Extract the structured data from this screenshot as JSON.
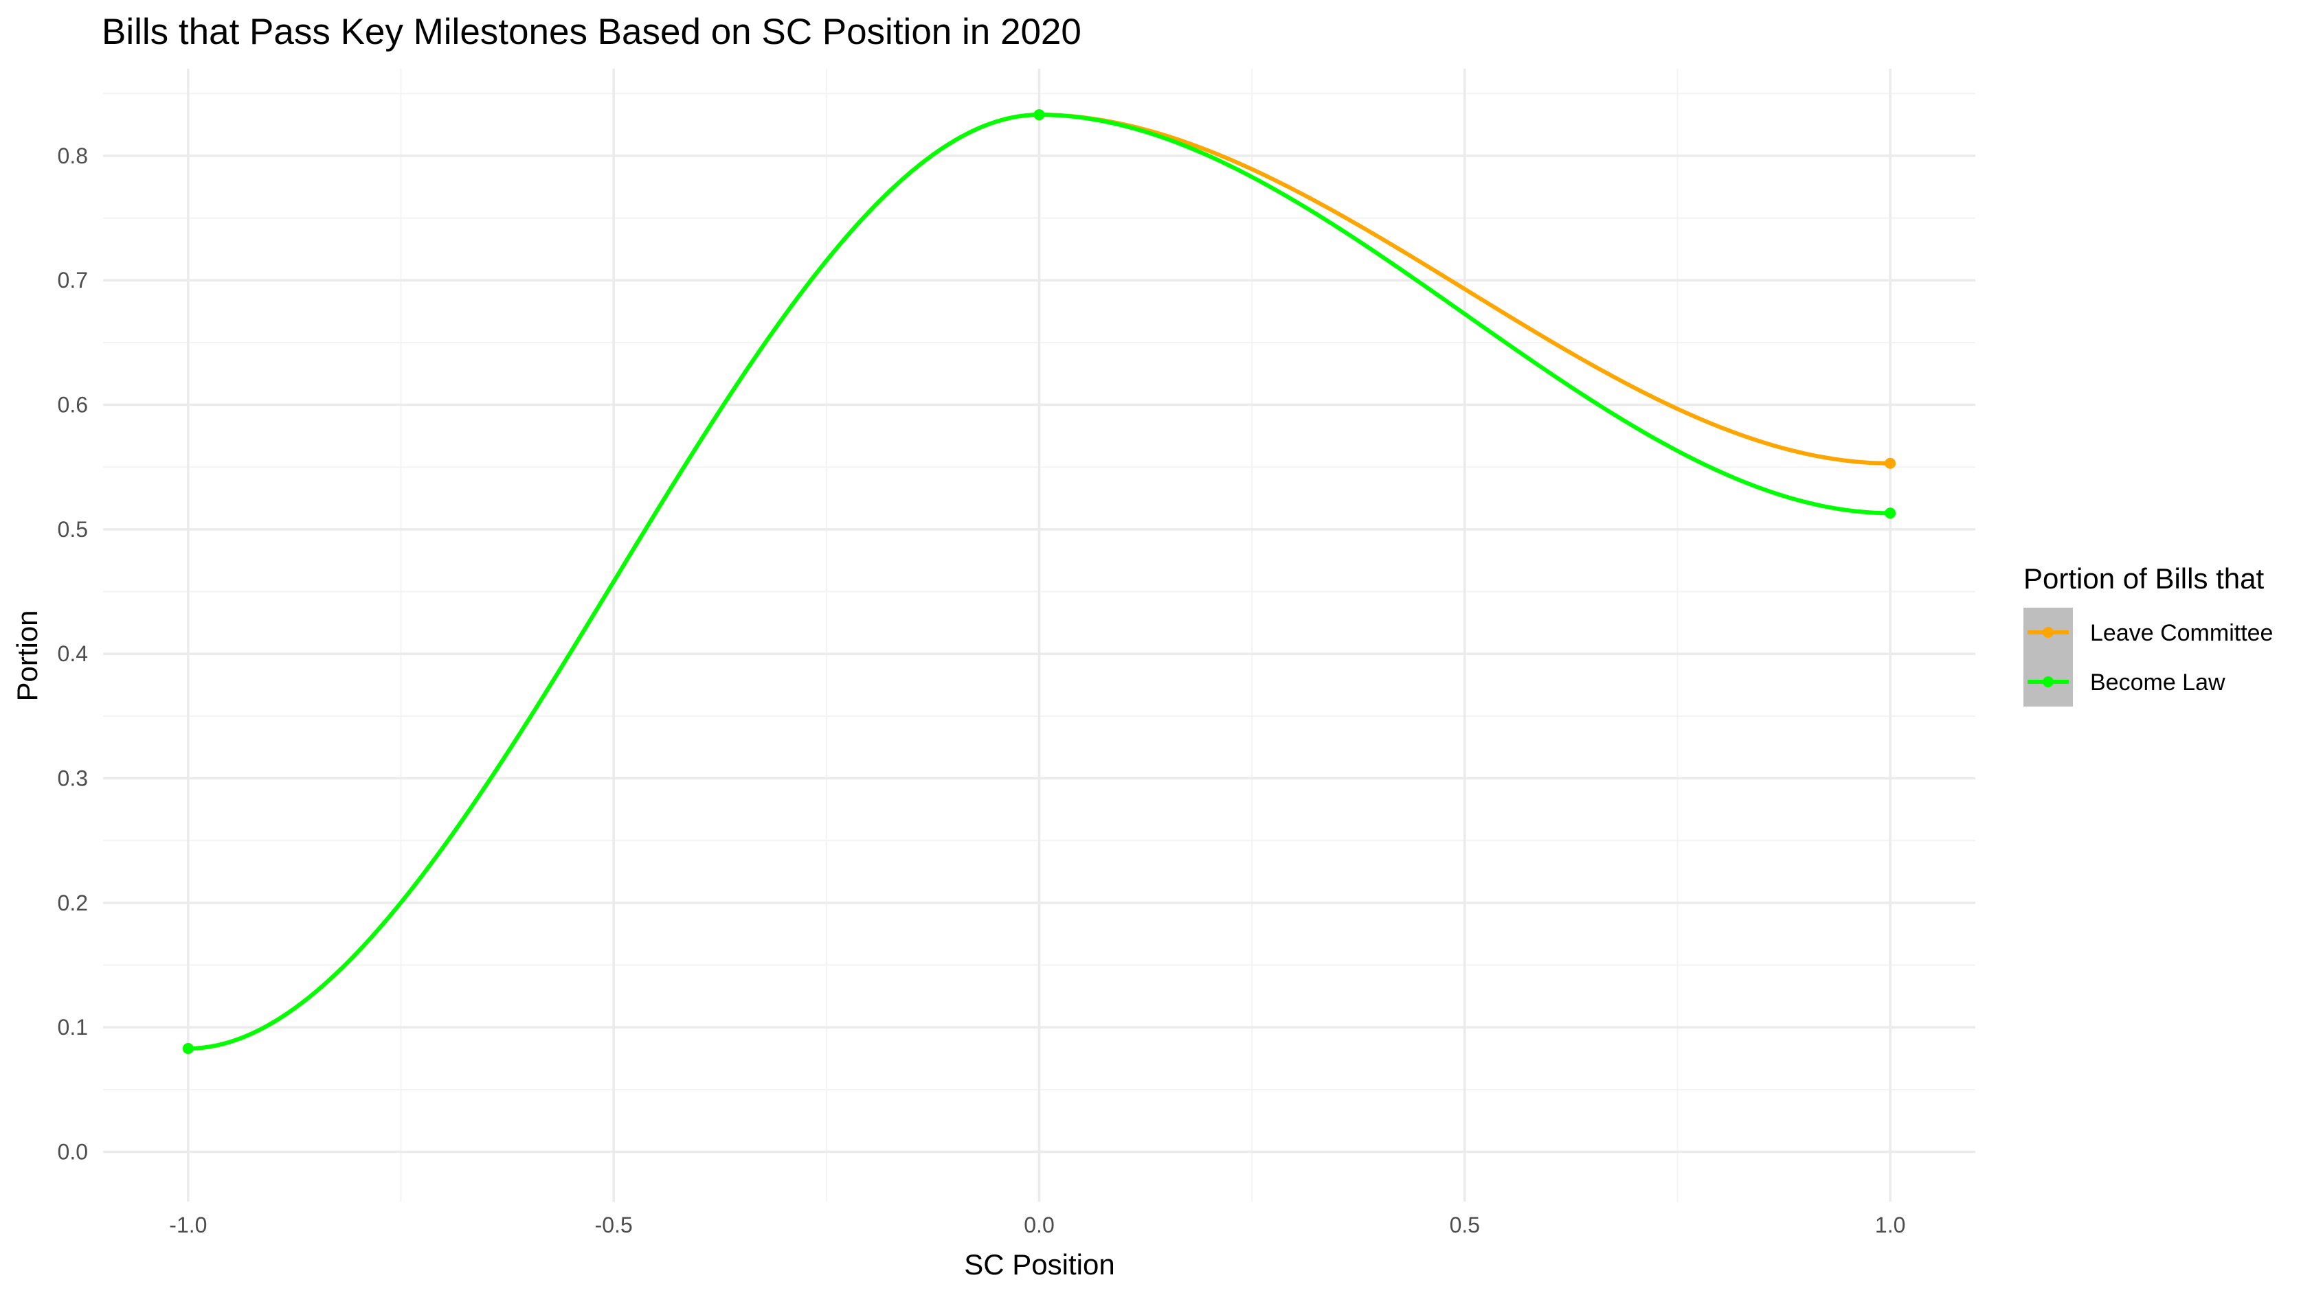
{
  "chart_data": {
    "type": "line",
    "title": "Bills that Pass Key Milestones Based on SC Position in 2020",
    "xlabel": "SC Position",
    "ylabel": "Portion",
    "xlim": [
      -1.1,
      1.1
    ],
    "ylim": [
      -0.04,
      0.87
    ],
    "x_ticks": [
      -1.0,
      -0.5,
      0.0,
      0.5,
      1.0
    ],
    "x_tick_labels": [
      "-1.0",
      "-0.5",
      "0.0",
      "0.5",
      "1.0"
    ],
    "y_ticks": [
      0.0,
      0.1,
      0.2,
      0.3,
      0.4,
      0.5,
      0.6,
      0.7,
      0.8
    ],
    "y_tick_labels": [
      "0.0",
      "0.1",
      "0.2",
      "0.3",
      "0.4",
      "0.5",
      "0.6",
      "0.7",
      "0.8"
    ],
    "grid": true,
    "legend_title": "Portion of Bills that",
    "legend_position": "right",
    "series": [
      {
        "name": "Leave Committee",
        "color": "#FFA500",
        "x": [
          -1.0,
          0.0,
          1.0
        ],
        "y": [
          0.083,
          0.833,
          0.553
        ]
      },
      {
        "name": "Become Law",
        "color": "#00FF00",
        "x": [
          -1.0,
          0.0,
          1.0
        ],
        "y": [
          0.083,
          0.833,
          0.513
        ]
      }
    ]
  },
  "colors": {
    "background": "#ffffff",
    "grid_major": "#ebebeb",
    "grid_minor": "#f3f3f3",
    "legend_key_bg": "#bebebe"
  }
}
